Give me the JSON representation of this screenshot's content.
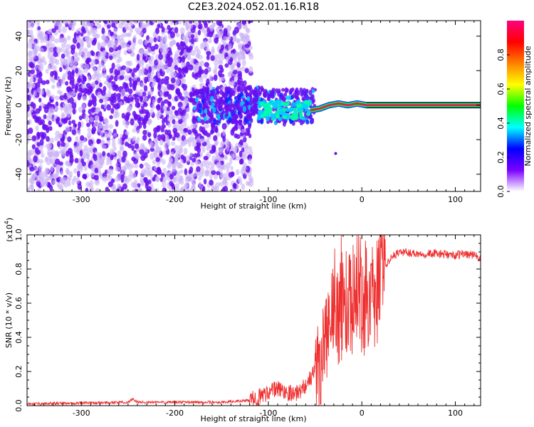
{
  "title": "C2E3.2024.052.01.16.R18",
  "colors": {
    "spectrum_core": "#6a0ff0",
    "spectrum_light": "#c9b0f5",
    "snr_line": "#ee3030",
    "carrier_high": "#e0204a"
  },
  "chart_data": [
    {
      "type": "heatmap",
      "title": "",
      "xlabel": "Height of straight line (km)",
      "ylabel": "Frequency (Hz)",
      "xlim": [
        -358,
        127
      ],
      "ylim": [
        -50,
        49
      ],
      "xticks": [
        -300,
        -200,
        -100,
        0,
        100
      ],
      "yticks": [
        -40,
        -20,
        0,
        20,
        40
      ],
      "carrier": [
        {
          "x": -55,
          "y": -3
        },
        {
          "x": -45,
          "y": -2
        },
        {
          "x": -35,
          "y": 0
        },
        {
          "x": -25,
          "y": 1
        },
        {
          "x": -15,
          "y": 0
        },
        {
          "x": -5,
          "y": 1
        },
        {
          "x": 5,
          "y": 0
        },
        {
          "x": 127,
          "y": 0
        }
      ],
      "colorbar": {
        "label": "Normalized spectral amplitude",
        "range": [
          0.0,
          1.0
        ],
        "ticks": [
          "0.0",
          "0.2",
          "0.4",
          "0.6",
          "0.8"
        ],
        "colormap": [
          "#ffffff",
          "#7a00ff",
          "#0000ff",
          "#00ffff",
          "#00ff00",
          "#ffff00",
          "#ff8000",
          "#ff0000",
          "#ff0080"
        ]
      }
    },
    {
      "type": "line",
      "title": "",
      "xlabel": "Height of straight line (km)",
      "ylabel": "SNR (10 * v/v)",
      "yscale_label": "(x10",
      "yscale_exp": "4",
      "xlim": [
        -358,
        127
      ],
      "ylim": [
        0.0,
        1.0
      ],
      "xticks": [
        -300,
        -200,
        -100,
        0,
        100
      ],
      "yticks": [
        "0.0",
        "0.2",
        "0.4",
        "0.6",
        "0.8",
        "1.0"
      ],
      "series": [
        {
          "x": [
            -358,
            -300,
            -250,
            -245,
            -240,
            -200,
            -150,
            -120,
            -110,
            -100,
            -90,
            -80,
            -70,
            -60,
            -50,
            -45,
            -40,
            -35,
            -30,
            -25,
            -20,
            -15,
            -10,
            -5,
            0,
            5,
            10,
            15,
            20,
            25,
            30,
            40,
            60,
            80,
            100,
            110,
            120,
            127
          ],
          "y": [
            0.01,
            0.015,
            0.02,
            0.04,
            0.02,
            0.02,
            0.02,
            0.03,
            0.05,
            0.08,
            0.1,
            0.08,
            0.07,
            0.12,
            0.2,
            0.3,
            0.38,
            0.42,
            0.5,
            0.55,
            0.6,
            0.58,
            0.55,
            0.6,
            0.62,
            0.6,
            0.62,
            0.65,
            0.75,
            0.82,
            0.86,
            0.9,
            0.89,
            0.89,
            0.88,
            0.89,
            0.88,
            0.86
          ]
        }
      ]
    }
  ]
}
